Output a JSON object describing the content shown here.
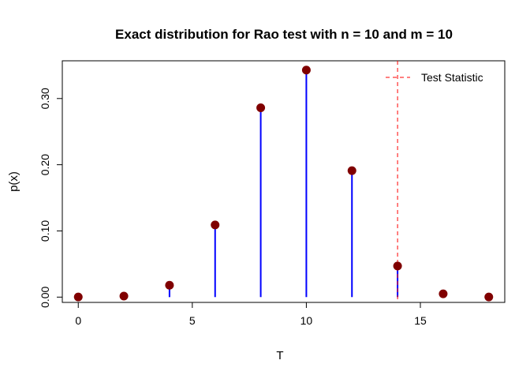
{
  "chart_data": {
    "type": "scatter",
    "title": "Exact distribution for Rao test with n = 10 and m = 10",
    "xlabel": "T",
    "ylabel": "p(x)",
    "xlim": [
      -0.7,
      18.7
    ],
    "ylim": [
      -0.008,
      0.357
    ],
    "x_ticks": [
      0,
      5,
      10,
      15
    ],
    "y_ticks": [
      0.0,
      0.1,
      0.2,
      0.3
    ],
    "y_tick_labels": [
      "0.00",
      "0.10",
      "0.20",
      "0.30"
    ],
    "x": [
      0,
      2,
      4,
      6,
      8,
      10,
      12,
      14,
      16,
      18
    ],
    "y": [
      0.0002,
      0.0016,
      0.018,
      0.109,
      0.286,
      0.343,
      0.191,
      0.047,
      0.005,
      0.0002
    ],
    "test_statistic": 14,
    "legend": {
      "position": "top-right",
      "entries": [
        {
          "label": "Test Statistic",
          "style": "dashed"
        }
      ]
    },
    "colors": {
      "stem": "#0000ff",
      "point": "#800000",
      "test_line": "#ff0000"
    },
    "grid": false
  }
}
